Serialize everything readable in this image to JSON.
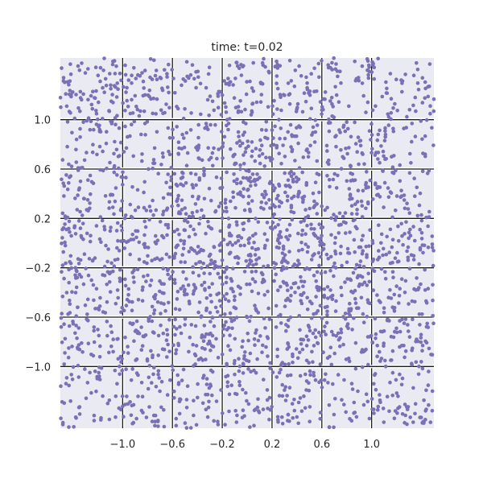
{
  "chart_data": {
    "type": "scatter",
    "title": "time: t=0.02",
    "xlabel": "",
    "ylabel": "",
    "xlim": [
      -1.5,
      1.5
    ],
    "ylim": [
      -1.5,
      1.5
    ],
    "xticks": [
      -1.0,
      -0.6,
      -0.2,
      0.2,
      0.6,
      1.0
    ],
    "xtick_labels": [
      "−1.0",
      "−0.6",
      "−0.2",
      "0.2",
      "0.6",
      "1.0"
    ],
    "yticks": [
      1.0,
      0.6,
      0.2,
      -0.2,
      -0.6,
      -1.0
    ],
    "ytick_labels": [
      "1.0",
      "0.6",
      "0.2",
      "−0.2",
      "−0.6",
      "−1.0"
    ],
    "grid": true,
    "grid_lines_doubled": true,
    "legend": "none",
    "marker_color": "#7b6fb6",
    "background_color": "#eaeaf2",
    "series": [
      {
        "points_approx_count": 2500,
        "distribution": "approximately uniform over [-1.5, 1.5] x [-1.5, 1.5], slightly denser near the origin",
        "sample_points": [
          [
            -1.42,
            1.45
          ],
          [
            -1.18,
            1.31
          ],
          [
            -0.91,
            1.42
          ],
          [
            -0.63,
            1.22
          ],
          [
            -0.31,
            1.37
          ],
          [
            0.05,
            1.46
          ],
          [
            0.38,
            1.27
          ],
          [
            0.71,
            1.41
          ],
          [
            1.02,
            1.33
          ],
          [
            1.35,
            1.18
          ],
          [
            -1.37,
            0.84
          ],
          [
            -0.97,
            0.77
          ],
          [
            -0.52,
            0.88
          ],
          [
            -0.11,
            0.71
          ],
          [
            0.27,
            0.93
          ],
          [
            0.64,
            0.79
          ],
          [
            1.11,
            0.86
          ],
          [
            1.43,
            0.72
          ],
          [
            -1.28,
            0.35
          ],
          [
            -0.83,
            0.41
          ],
          [
            -0.41,
            0.47
          ],
          [
            -0.05,
            0.39
          ],
          [
            0.33,
            0.51
          ],
          [
            0.82,
            0.44
          ],
          [
            1.24,
            0.38
          ],
          [
            -1.46,
            -0.02
          ],
          [
            -0.92,
            0.07
          ],
          [
            -0.44,
            -0.05
          ],
          [
            0.02,
            0.04
          ],
          [
            0.47,
            -0.01
          ],
          [
            0.93,
            0.06
          ],
          [
            1.39,
            -0.04
          ],
          [
            -1.21,
            -0.37
          ],
          [
            -0.74,
            -0.45
          ],
          [
            -0.28,
            -0.33
          ],
          [
            0.14,
            -0.42
          ],
          [
            0.58,
            -0.36
          ],
          [
            1.07,
            -0.48
          ],
          [
            -1.33,
            -0.81
          ],
          [
            -0.88,
            -0.73
          ],
          [
            -0.36,
            -0.85
          ],
          [
            0.09,
            -0.79
          ],
          [
            0.52,
            -0.88
          ],
          [
            0.97,
            -0.76
          ],
          [
            1.41,
            -0.83
          ],
          [
            -1.16,
            -1.24
          ],
          [
            -0.69,
            -1.33
          ],
          [
            -0.21,
            -1.19
          ],
          [
            0.28,
            -1.41
          ],
          [
            0.76,
            -1.27
          ],
          [
            1.19,
            -1.36
          ],
          [
            -1.48,
            -1.47
          ],
          [
            0.01,
            -1.02
          ],
          [
            -0.03,
            0.98
          ]
        ]
      }
    ]
  }
}
